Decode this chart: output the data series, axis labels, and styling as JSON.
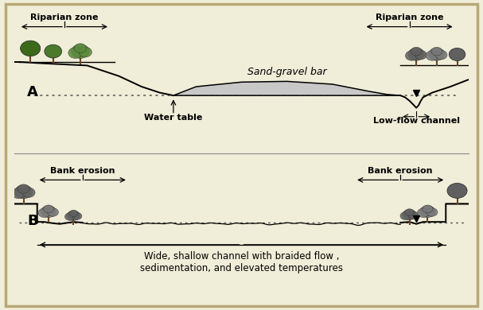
{
  "bg_color": "#f0edd8",
  "border_color": "#b8a878",
  "line_color": "#000000",
  "fill_color_sandbar": "#c8c8c8",
  "dotted_line_color": "#555555",
  "panel_A": {
    "label": "A",
    "title_sandbar": "Sand-gravel bar",
    "label_water_table": "Water table",
    "label_low_flow": "Low-flow channel",
    "label_riparian_left": "Riparian zone",
    "label_riparian_right": "Riparian zone"
  },
  "panel_B": {
    "label": "B",
    "label_bank_erosion_left": "Bank erosion",
    "label_bank_erosion_right": "Bank erosion",
    "label_bottom": "Wide, shallow channel with braided flow ,\nsedimentation, and elevated temperatures"
  },
  "tree_colors": {
    "green_dark": "#3a6a1a",
    "green_mid": "#4a7a2a",
    "green_light": "#5a8a3a",
    "grey_dark": "#606060",
    "grey_mid": "#787878",
    "trunk": "#6b4423"
  }
}
